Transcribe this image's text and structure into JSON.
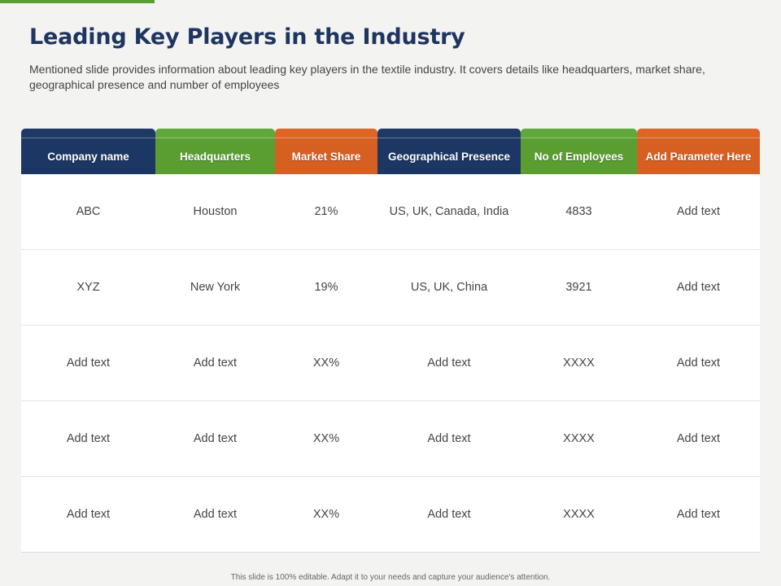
{
  "title": "Leading Key Players in the Industry",
  "description": "Mentioned slide provides information about leading key players in the textile industry. It covers details like headquarters, market share, geographical presence and number of employees",
  "colors": {
    "navy": "#1c3764",
    "green": "#5a9e32",
    "orange": "#d65f22",
    "title": "#1e3560"
  },
  "table": {
    "headers": [
      "Company name",
      "Headquarters",
      "Market Share",
      "Geographical Presence",
      "No of Employees",
      "Add Parameter Here"
    ],
    "rows": [
      [
        "ABC",
        "Houston",
        "21%",
        "US, UK, Canada, India",
        "4833",
        "Add text"
      ],
      [
        "XYZ",
        "New York",
        "19%",
        "US, UK, China",
        "3921",
        "Add text"
      ],
      [
        "Add text",
        "Add text",
        "XX%",
        "Add text",
        "XXXX",
        "Add text"
      ],
      [
        "Add text",
        "Add text",
        "XX%",
        "Add text",
        "XXXX",
        "Add text"
      ],
      [
        "Add text",
        "Add text",
        "XX%",
        "Add text",
        "XXXX",
        "Add text"
      ]
    ]
  },
  "footer": "This slide is 100% editable. Adapt it to your needs and capture your audience's attention."
}
